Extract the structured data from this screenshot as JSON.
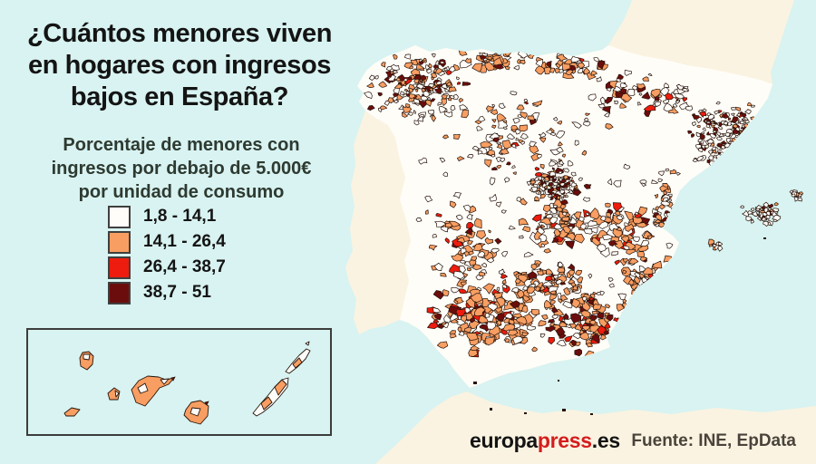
{
  "title": "¿Cuántos menores viven\nen hogares con ingresos\nbajos en España?",
  "subtitle": "Porcentaje de menores con\ningresos por debajo de 5.000€\npor unidad de consumo",
  "legend": {
    "items": [
      {
        "label": "1,8 - 14,1",
        "color": "#fffdfa"
      },
      {
        "label": "14,1 - 26,4",
        "color": "#f89e62"
      },
      {
        "label": "26,4 - 38,7",
        "color": "#ee1c0e"
      },
      {
        "label": "38,7 - 51",
        "color": "#6b0d0d"
      }
    ]
  },
  "footer": {
    "brand_black1": "europa",
    "brand_red": "press",
    "brand_black2": ".es",
    "source": "Fuente: INE, EpData"
  },
  "colors": {
    "sea": "#d8f3f1",
    "land_other": "#faf3e1",
    "spain_base": "#fffdf8",
    "outline": "#26140a",
    "title_text": "#141414",
    "subtitle_text": "#2e3a31",
    "source_text": "#4a433b",
    "brand_red": "#d41d1d",
    "swatch_border": "#3f3f3f",
    "inset_border": "#3c3c3c"
  },
  "chart_data": {
    "type": "choropleth",
    "title": "¿Cuántos menores viven en hogares con ingresos bajos en España?",
    "measure": "Porcentaje de menores con ingresos por debajo de 5.000€ por unidad de consumo",
    "geography": "Municipios de España, con recuadro de las Islas Canarias",
    "legend_position": "left",
    "bins": [
      {
        "range": "1,8 - 14,1",
        "min": 1.8,
        "max": 14.1,
        "color": "#fffdfa"
      },
      {
        "range": "14,1 - 26,4",
        "min": 14.1,
        "max": 26.4,
        "color": "#f89e62"
      },
      {
        "range": "26,4 - 38,7",
        "min": 26.4,
        "max": 38.7,
        "color": "#ee1c0e"
      },
      {
        "range": "38,7 - 51",
        "min": 38.7,
        "max": 51,
        "color": "#6b0d0d"
      }
    ],
    "source": "INE, EpData"
  }
}
